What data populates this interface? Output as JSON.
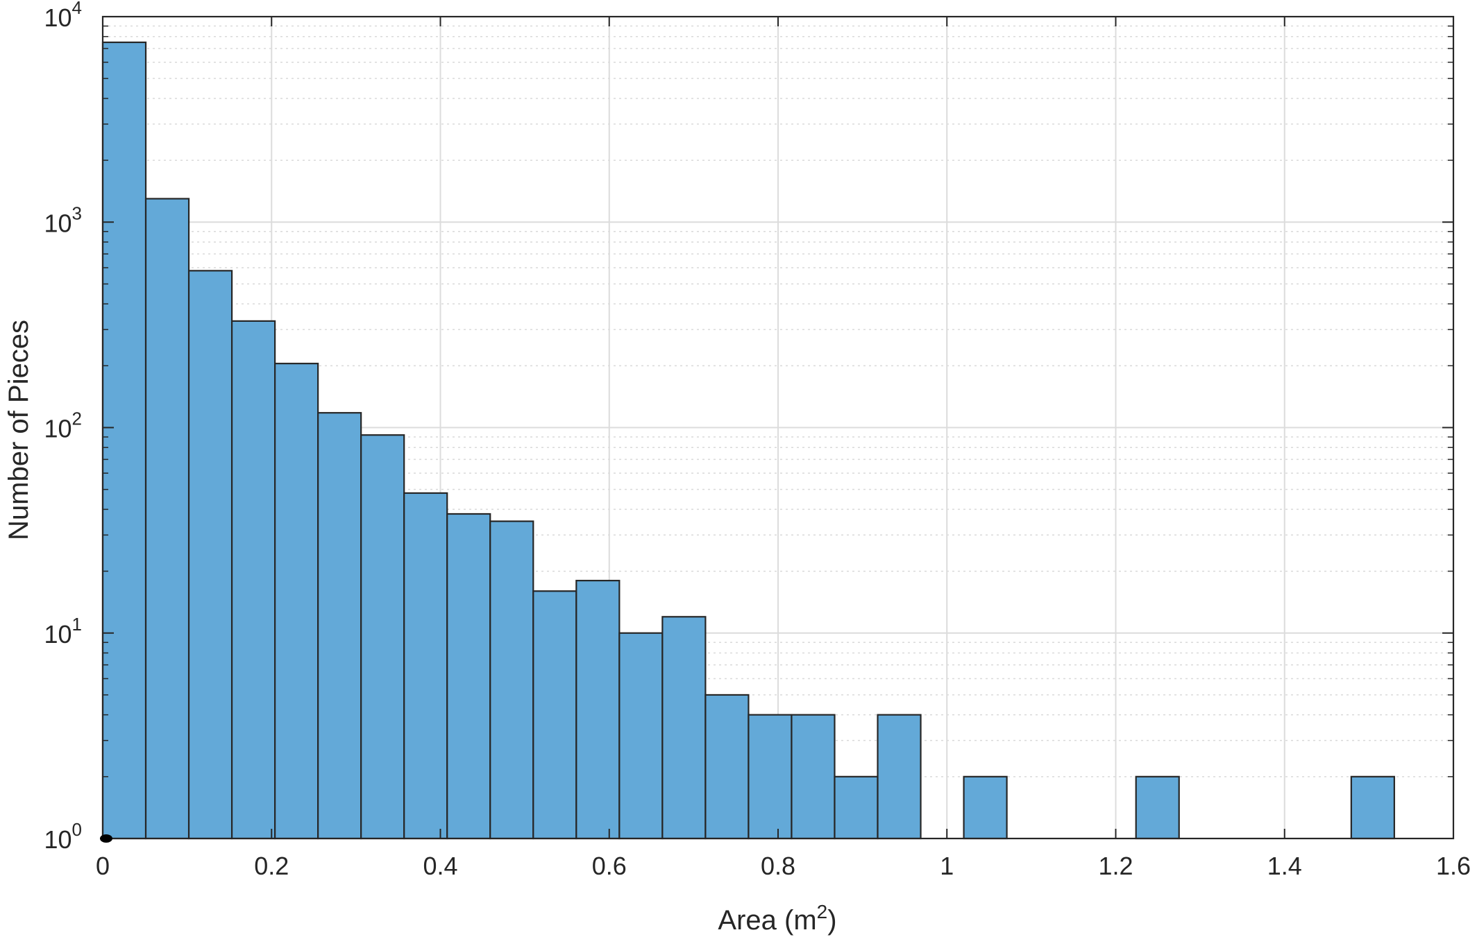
{
  "chart_data": {
    "type": "bar",
    "subtype": "histogram",
    "title": "",
    "xlabel": "Area (m",
    "xlabel_superscript": "2",
    "xlabel_suffix": ")",
    "ylabel": "Number of Pieces",
    "xlim": [
      0,
      1.6
    ],
    "ylim": [
      1,
      10000
    ],
    "yscale": "log",
    "grid": true,
    "minor_grid": true,
    "legend": "none",
    "bar_color": "#63a9d8",
    "edge_color": "#262626",
    "bin_width": 0.051,
    "bins": [
      {
        "x0": 0.0,
        "x1": 0.051,
        "count": 7500
      },
      {
        "x0": 0.051,
        "x1": 0.102,
        "count": 1300
      },
      {
        "x0": 0.102,
        "x1": 0.153,
        "count": 580
      },
      {
        "x0": 0.153,
        "x1": 0.204,
        "count": 330
      },
      {
        "x0": 0.204,
        "x1": 0.255,
        "count": 205
      },
      {
        "x0": 0.255,
        "x1": 0.306,
        "count": 118
      },
      {
        "x0": 0.306,
        "x1": 0.357,
        "count": 92
      },
      {
        "x0": 0.357,
        "x1": 0.408,
        "count": 48
      },
      {
        "x0": 0.408,
        "x1": 0.459,
        "count": 38
      },
      {
        "x0": 0.459,
        "x1": 0.51,
        "count": 35
      },
      {
        "x0": 0.51,
        "x1": 0.561,
        "count": 16
      },
      {
        "x0": 0.561,
        "x1": 0.612,
        "count": 18
      },
      {
        "x0": 0.612,
        "x1": 0.663,
        "count": 10
      },
      {
        "x0": 0.663,
        "x1": 0.714,
        "count": 12
      },
      {
        "x0": 0.714,
        "x1": 0.765,
        "count": 5
      },
      {
        "x0": 0.765,
        "x1": 0.816,
        "count": 4
      },
      {
        "x0": 0.816,
        "x1": 0.867,
        "count": 4
      },
      {
        "x0": 0.867,
        "x1": 0.918,
        "count": 2
      },
      {
        "x0": 0.918,
        "x1": 0.969,
        "count": 4
      },
      {
        "x0": 0.969,
        "x1": 1.02,
        "count": 1
      },
      {
        "x0": 1.02,
        "x1": 1.071,
        "count": 2
      },
      {
        "x0": 1.071,
        "x1": 1.122,
        "count": 0
      },
      {
        "x0": 1.122,
        "x1": 1.173,
        "count": 1
      },
      {
        "x0": 1.173,
        "x1": 1.224,
        "count": 0
      },
      {
        "x0": 1.224,
        "x1": 1.275,
        "count": 2
      },
      {
        "x0": 1.275,
        "x1": 1.326,
        "count": 0
      },
      {
        "x0": 1.326,
        "x1": 1.377,
        "count": 1
      },
      {
        "x0": 1.377,
        "x1": 1.428,
        "count": 0
      },
      {
        "x0": 1.428,
        "x1": 1.479,
        "count": 0
      },
      {
        "x0": 1.479,
        "x1": 1.53,
        "count": 2
      }
    ],
    "xticks": [
      {
        "value": 0,
        "label": "0"
      },
      {
        "value": 0.2,
        "label": "0.2"
      },
      {
        "value": 0.4,
        "label": "0.4"
      },
      {
        "value": 0.6,
        "label": "0.6"
      },
      {
        "value": 0.8,
        "label": "0.8"
      },
      {
        "value": 1.0,
        "label": "1"
      },
      {
        "value": 1.2,
        "label": "1.2"
      },
      {
        "value": 1.4,
        "label": "1.4"
      },
      {
        "value": 1.6,
        "label": "1.6"
      }
    ],
    "yticks": [
      {
        "value": 1,
        "base": "10",
        "exp": "0"
      },
      {
        "value": 10,
        "base": "10",
        "exp": "1"
      },
      {
        "value": 100,
        "base": "10",
        "exp": "2"
      },
      {
        "value": 1000,
        "base": "10",
        "exp": "3"
      },
      {
        "value": 10000,
        "base": "10",
        "exp": "4"
      }
    ]
  }
}
